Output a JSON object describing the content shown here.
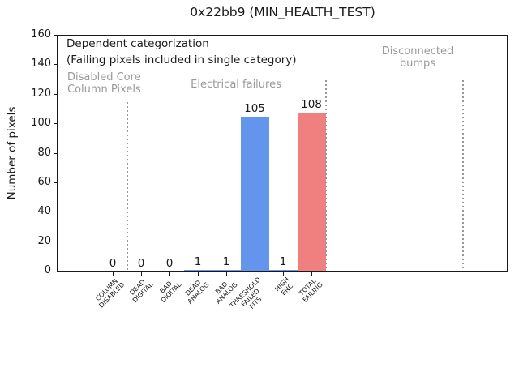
{
  "title": "0x22bb9 (MIN_HEALTH_TEST)",
  "ylabel": "Number of pixels",
  "annotations": {
    "method_line1": "Dependent categorization",
    "method_line2": "(Failing pixels included in single category)",
    "region_disabled": "Disabled Core\nColumn Pixels",
    "region_electrical": "Electrical failures",
    "region_disconnected": "Disconnected\nbumps"
  },
  "colors": {
    "bar_blue": "#6495ED",
    "bar_red": "#F08080",
    "gray_annotation": "#999999",
    "axis": "#1a1a1a"
  },
  "chart_data": {
    "type": "bar",
    "title": "0x22bb9 (MIN_HEALTH_TEST)",
    "xlabel": "",
    "ylabel": "Number of pixels",
    "ylim": [
      0,
      160
    ],
    "yticks": [
      0,
      20,
      40,
      60,
      80,
      100,
      120,
      140,
      160
    ],
    "grid": false,
    "legend": "none",
    "categories": [
      "COLUMN\nDISABLED",
      "DEAD\nDIGITAL",
      "BAD\nDIGITAL",
      "DEAD\nANALOG",
      "BAD\nANALOG",
      "THRESHOLD\nFAILED\nFITS",
      "HIGH\nENC",
      "TOTAL\nFAILING"
    ],
    "values": [
      0,
      0,
      0,
      1,
      1,
      105,
      1,
      108
    ],
    "value_labels": [
      "0",
      "0",
      "0",
      "1",
      "1",
      "105",
      "1",
      "108"
    ],
    "bar_colors": [
      "#6495ED",
      "#6495ED",
      "#6495ED",
      "#6495ED",
      "#6495ED",
      "#6495ED",
      "#6495ED",
      "#F08080"
    ],
    "region_separators": [
      {
        "x_between_categories": 0.5,
        "top_value": 115
      },
      {
        "x_between_categories": 7.5,
        "top_value": 130
      },
      {
        "x_between_categories": 12.35,
        "top_value": 130
      }
    ],
    "region_labels": [
      "Disabled Core\nColumn Pixels",
      "Electrical failures",
      "Disconnected\nbumps"
    ],
    "annotation_note": "Dependent categorization\n(Failing pixels included in single category)"
  }
}
